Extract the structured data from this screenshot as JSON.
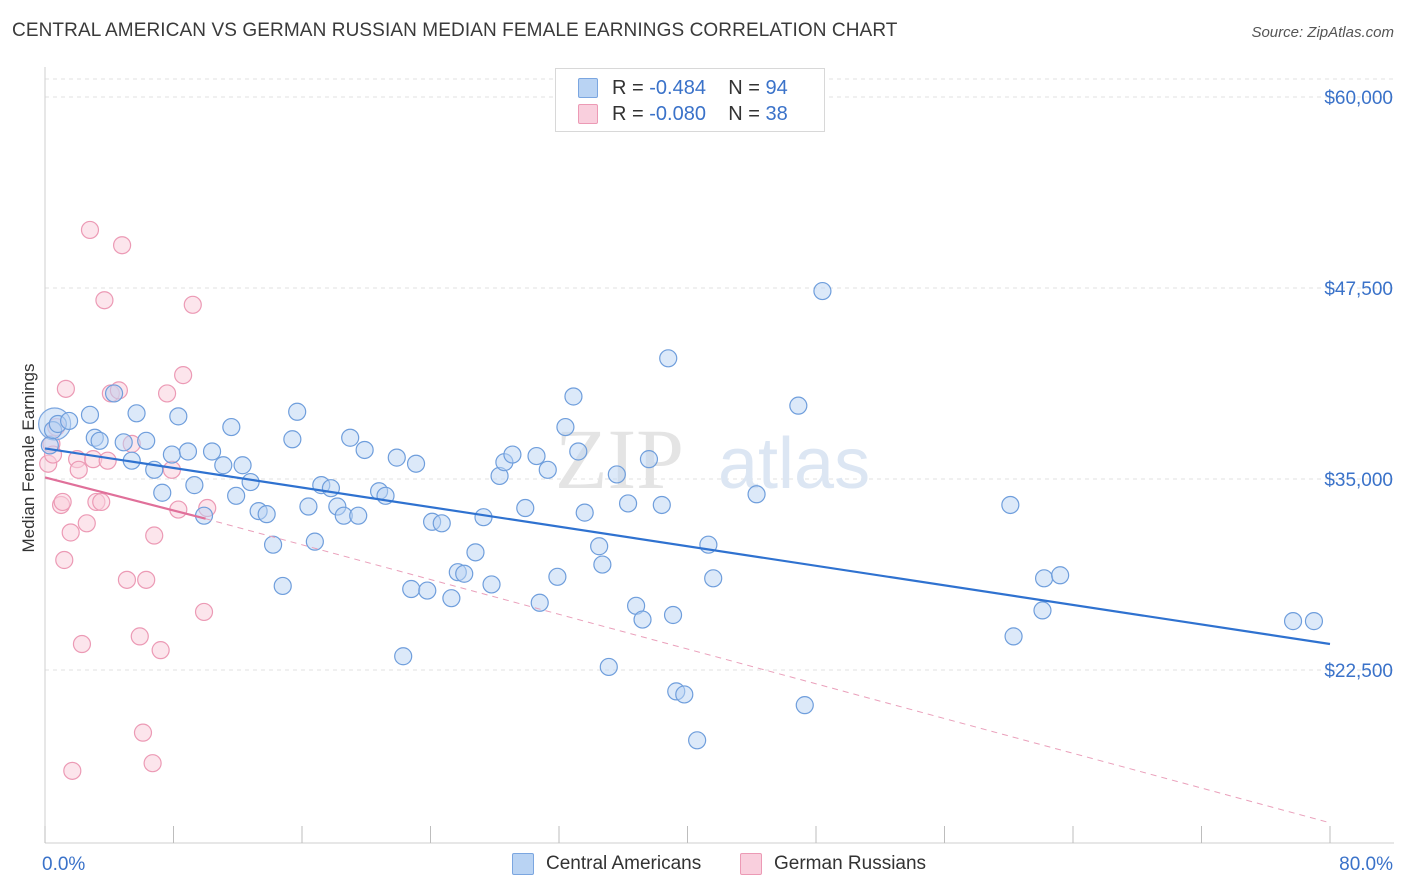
{
  "title": "CENTRAL AMERICAN VS GERMAN RUSSIAN MEDIAN FEMALE EARNINGS CORRELATION CHART",
  "source": "Source: ZipAtlas.com",
  "watermark": {
    "zip": "ZIP",
    "atlas": "atlas"
  },
  "legend": {
    "rows": [
      {
        "r_label": "R =",
        "r_value": "-0.484",
        "n_label": "N =",
        "n_value": "94",
        "color": "#a9c8f0"
      },
      {
        "r_label": "R =",
        "r_value": "-0.080",
        "n_label": "N =",
        "n_value": "38",
        "color": "#f5b8cc"
      }
    ]
  },
  "bottom_legend": [
    "Central Americans",
    "German Russians"
  ],
  "chart_data": {
    "type": "scatter",
    "title": "CENTRAL AMERICAN VS GERMAN RUSSIAN MEDIAN FEMALE EARNINGS CORRELATION CHART",
    "xlabel": "",
    "ylabel": "Median Female Earnings",
    "xlim": [
      0,
      80
    ],
    "ylim": [
      12500,
      62000
    ],
    "x_tick_labels": [
      "0.0%",
      "80.0%"
    ],
    "y_ticks": [
      22500,
      35000,
      47500,
      60000
    ],
    "y_tick_labels": [
      "$22,500",
      "$35,000",
      "$47,500",
      "$60,000"
    ],
    "grid": true,
    "legend_position": "top-center",
    "colors": {
      "blue": "#5b93dc",
      "pink": "#ee8fae",
      "blue_line": "#2f72d0",
      "pink_line": "#e0709a",
      "axis_text": "#3a72c9"
    },
    "series": [
      {
        "name": "Central Americans",
        "color": "#5b93dc",
        "trend": {
          "x": [
            0,
            80
          ],
          "y": [
            37000,
            24200
          ]
        },
        "points": [
          [
            0.3,
            37200
          ],
          [
            0.5,
            38200
          ],
          [
            0.8,
            38600
          ],
          [
            1.5,
            38800
          ],
          [
            2.8,
            39200
          ],
          [
            3.1,
            37700
          ],
          [
            3.4,
            37500
          ],
          [
            4.3,
            40600
          ],
          [
            4.9,
            37400
          ],
          [
            5.4,
            36200
          ],
          [
            5.7,
            39300
          ],
          [
            6.3,
            37500
          ],
          [
            6.8,
            35600
          ],
          [
            7.3,
            34100
          ],
          [
            7.9,
            36600
          ],
          [
            8.3,
            39100
          ],
          [
            8.9,
            36800
          ],
          [
            9.3,
            34600
          ],
          [
            9.9,
            32600
          ],
          [
            10.4,
            36800
          ],
          [
            11.1,
            35900
          ],
          [
            11.6,
            38400
          ],
          [
            11.9,
            33900
          ],
          [
            12.3,
            35900
          ],
          [
            12.8,
            34800
          ],
          [
            13.3,
            32900
          ],
          [
            13.8,
            32700
          ],
          [
            14.2,
            30700
          ],
          [
            14.8,
            28000
          ],
          [
            15.4,
            37600
          ],
          [
            15.7,
            39400
          ],
          [
            16.4,
            33200
          ],
          [
            16.8,
            30900
          ],
          [
            17.2,
            34600
          ],
          [
            17.8,
            34400
          ],
          [
            18.2,
            33200
          ],
          [
            18.6,
            32600
          ],
          [
            19.0,
            37700
          ],
          [
            19.5,
            32600
          ],
          [
            19.9,
            36900
          ],
          [
            20.8,
            34200
          ],
          [
            21.2,
            33900
          ],
          [
            21.9,
            36400
          ],
          [
            22.3,
            23400
          ],
          [
            22.8,
            27800
          ],
          [
            23.1,
            36000
          ],
          [
            23.8,
            27700
          ],
          [
            24.1,
            32200
          ],
          [
            24.7,
            32100
          ],
          [
            25.3,
            27200
          ],
          [
            25.7,
            28900
          ],
          [
            26.1,
            28800
          ],
          [
            26.8,
            30200
          ],
          [
            27.3,
            32500
          ],
          [
            27.8,
            28100
          ],
          [
            28.3,
            35200
          ],
          [
            28.6,
            36100
          ],
          [
            29.1,
            36600
          ],
          [
            29.9,
            33100
          ],
          [
            30.6,
            36500
          ],
          [
            30.8,
            26900
          ],
          [
            31.3,
            35600
          ],
          [
            31.9,
            28600
          ],
          [
            32.4,
            38400
          ],
          [
            32.9,
            40400
          ],
          [
            33.2,
            36800
          ],
          [
            33.6,
            32800
          ],
          [
            34.5,
            30600
          ],
          [
            34.7,
            29400
          ],
          [
            35.1,
            22700
          ],
          [
            35.6,
            35300
          ],
          [
            36.3,
            33400
          ],
          [
            36.8,
            26700
          ],
          [
            37.2,
            25800
          ],
          [
            37.6,
            36300
          ],
          [
            38.4,
            33300
          ],
          [
            38.8,
            42900
          ],
          [
            39.1,
            26100
          ],
          [
            39.3,
            21100
          ],
          [
            39.8,
            20900
          ],
          [
            40.6,
            17900
          ],
          [
            41.3,
            30700
          ],
          [
            41.6,
            28500
          ],
          [
            44.3,
            34000
          ],
          [
            46.9,
            39800
          ],
          [
            47.3,
            20200
          ],
          [
            48.4,
            47300
          ],
          [
            60.1,
            33300
          ],
          [
            60.3,
            24700
          ],
          [
            62.1,
            26400
          ],
          [
            62.2,
            28500
          ],
          [
            63.2,
            28700
          ],
          [
            77.7,
            25700
          ],
          [
            79.0,
            25700
          ]
        ],
        "big_points": [
          [
            0.6,
            38600
          ]
        ]
      },
      {
        "name": "German Russians",
        "color": "#ee8fae",
        "trend": {
          "x": [
            0,
            10
          ],
          "y": [
            35100,
            32400
          ]
        },
        "trend_dashed": {
          "x": [
            10,
            80
          ],
          "y": [
            32400,
            12500
          ]
        },
        "points": [
          [
            0.2,
            36000
          ],
          [
            0.4,
            37300
          ],
          [
            0.5,
            36600
          ],
          [
            0.7,
            38400
          ],
          [
            1.0,
            33300
          ],
          [
            1.1,
            33500
          ],
          [
            1.2,
            29700
          ],
          [
            1.3,
            40900
          ],
          [
            1.6,
            31500
          ],
          [
            1.7,
            15900
          ],
          [
            2.0,
            36300
          ],
          [
            2.1,
            35600
          ],
          [
            2.3,
            24200
          ],
          [
            2.6,
            32100
          ],
          [
            2.8,
            51300
          ],
          [
            3.0,
            36300
          ],
          [
            3.2,
            33500
          ],
          [
            3.5,
            33500
          ],
          [
            3.7,
            46700
          ],
          [
            3.9,
            36200
          ],
          [
            4.1,
            40600
          ],
          [
            4.6,
            40800
          ],
          [
            4.8,
            50300
          ],
          [
            5.1,
            28400
          ],
          [
            5.4,
            37300
          ],
          [
            5.9,
            24700
          ],
          [
            6.1,
            18400
          ],
          [
            6.3,
            28400
          ],
          [
            6.7,
            16400
          ],
          [
            6.8,
            31300
          ],
          [
            7.2,
            23800
          ],
          [
            7.6,
            40600
          ],
          [
            7.9,
            35600
          ],
          [
            8.3,
            33000
          ],
          [
            8.6,
            41800
          ],
          [
            9.2,
            46400
          ],
          [
            9.9,
            26300
          ],
          [
            10.1,
            33100
          ]
        ]
      }
    ]
  }
}
